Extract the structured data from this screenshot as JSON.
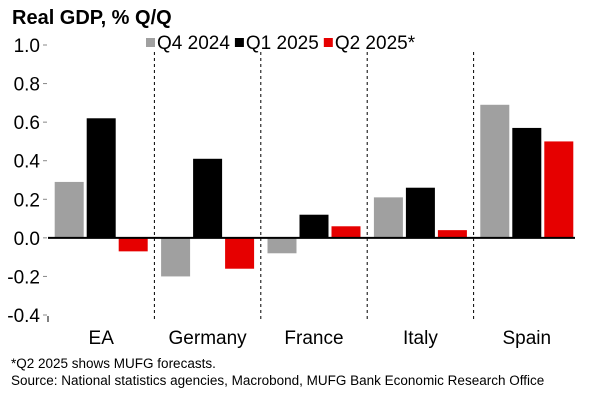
{
  "chart_data": {
    "type": "bar",
    "title": "Real GDP, % Q/Q",
    "xlabel": "",
    "ylabel": "",
    "ylim": [
      -0.4,
      1.0
    ],
    "yticks": [
      1.0,
      0.8,
      0.6,
      0.4,
      0.2,
      0.0,
      -0.2,
      -0.4
    ],
    "ytick_labels": [
      "1.0",
      "0.8",
      "0.6",
      "0.4",
      "0.2",
      "0.0",
      "-0.2",
      "-0.4"
    ],
    "categories": [
      "EA",
      "Germany",
      "France",
      "Italy",
      "Spain"
    ],
    "series": [
      {
        "name": "Q4 2024",
        "color": "#a0a0a0",
        "values": [
          0.29,
          -0.2,
          -0.08,
          0.21,
          0.69
        ]
      },
      {
        "name": "Q1 2025",
        "color": "#000000",
        "values": [
          0.62,
          0.41,
          0.12,
          0.26,
          0.57
        ]
      },
      {
        "name": "Q2 2025*",
        "color": "#e60000",
        "values": [
          -0.07,
          -0.16,
          0.06,
          0.04,
          0.5
        ]
      }
    ],
    "legend_position": "top",
    "grid": false,
    "category_separators": "dashed"
  },
  "footnotes": {
    "note": "*Q2 2025 shows MUFG forecasts.",
    "source": "Source: National statistics agencies, Macrobond, MUFG Bank Economic Research Office"
  }
}
